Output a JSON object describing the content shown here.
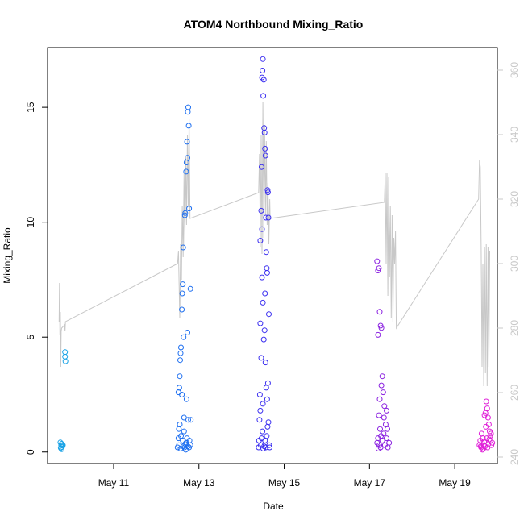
{
  "chart_data": {
    "type": "scatter",
    "title": "ATOM4 Northbound Mixing_Ratio",
    "xlabel": "Date",
    "ylabel": "Mixing_Ratio",
    "x_ticks": [
      {
        "label": "May 11",
        "day": 11
      },
      {
        "label": "May 13",
        "day": 13
      },
      {
        "label": "May 15",
        "day": 15
      },
      {
        "label": "May 17",
        "day": 17
      },
      {
        "label": "May 19",
        "day": 19
      }
    ],
    "x_range_days": [
      9.45,
      20.0
    ],
    "y_ticks": [
      0,
      5,
      10,
      15
    ],
    "ylim": [
      -0.5,
      17.6
    ],
    "y2_ticks": [
      240,
      260,
      280,
      300,
      320,
      340,
      360
    ],
    "y2lim": [
      238,
      367
    ],
    "y2_color": "#c8c8c8",
    "grid": false,
    "series": [
      {
        "kind": "points",
        "color": "#1aa3e6",
        "points": [
          [
            9.75,
            0.42
          ],
          [
            9.77,
            0.3
          ],
          [
            9.78,
            0.36
          ],
          [
            9.76,
            0.18
          ],
          [
            9.79,
            0.22
          ],
          [
            9.8,
            0.28
          ],
          [
            9.78,
            0.12
          ],
          [
            9.81,
            0.3
          ],
          [
            9.86,
            4.35
          ],
          [
            9.86,
            4.15
          ],
          [
            9.87,
            3.95
          ]
        ]
      },
      {
        "kind": "points",
        "color": "#1e6ff0",
        "points": [
          [
            12.5,
            0.2
          ],
          [
            12.52,
            0.6
          ],
          [
            12.53,
            1.0
          ],
          [
            12.54,
            2.8
          ],
          [
            12.55,
            3.3
          ],
          [
            12.56,
            4.0
          ],
          [
            12.57,
            4.3
          ],
          [
            12.58,
            4.55
          ],
          [
            12.6,
            6.2
          ],
          [
            12.61,
            6.9
          ],
          [
            12.62,
            7.3
          ],
          [
            12.63,
            8.9
          ],
          [
            12.64,
            5.0
          ],
          [
            12.65,
            1.5
          ],
          [
            12.67,
            10.3
          ],
          [
            12.68,
            10.4
          ],
          [
            12.7,
            12.2
          ],
          [
            12.71,
            12.6
          ],
          [
            12.72,
            13.5
          ],
          [
            12.73,
            12.8
          ],
          [
            12.74,
            14.8
          ],
          [
            12.75,
            15.0
          ],
          [
            12.76,
            14.2
          ],
          [
            12.77,
            10.6
          ],
          [
            12.8,
            7.1
          ],
          [
            12.73,
            5.2
          ],
          [
            12.71,
            2.3
          ],
          [
            12.53,
            0.3
          ],
          [
            12.57,
            0.15
          ],
          [
            12.62,
            0.5
          ],
          [
            12.66,
            0.2
          ],
          [
            12.7,
            0.4
          ],
          [
            12.74,
            0.25
          ],
          [
            12.78,
            0.5
          ],
          [
            12.8,
            0.3
          ],
          [
            12.55,
            1.2
          ],
          [
            12.65,
            0.9
          ],
          [
            12.75,
            1.4
          ],
          [
            12.81,
            1.4
          ],
          [
            12.58,
            0.7
          ],
          [
            12.68,
            0.35
          ],
          [
            12.72,
            0.6
          ],
          [
            12.6,
            2.5
          ],
          [
            12.52,
            2.6
          ],
          [
            12.69,
            0.1
          ],
          [
            12.63,
            0.25
          ],
          [
            12.77,
            0.2
          ]
        ]
      },
      {
        "kind": "points",
        "color": "#3c30f0",
        "points": [
          [
            14.4,
            0.2
          ],
          [
            14.42,
            1.4
          ],
          [
            14.43,
            2.5
          ],
          [
            14.44,
            5.6
          ],
          [
            14.46,
            10.5
          ],
          [
            14.47,
            12.4
          ],
          [
            14.48,
            16.3
          ],
          [
            14.49,
            16.6
          ],
          [
            14.5,
            17.1
          ],
          [
            14.51,
            15.5
          ],
          [
            14.52,
            16.2
          ],
          [
            14.53,
            14.1
          ],
          [
            14.54,
            13.9
          ],
          [
            14.55,
            13.2
          ],
          [
            14.56,
            12.9
          ],
          [
            14.57,
            10.2
          ],
          [
            14.58,
            8.7
          ],
          [
            14.59,
            8.0
          ],
          [
            14.6,
            7.8
          ],
          [
            14.61,
            11.4
          ],
          [
            14.62,
            11.3
          ],
          [
            14.63,
            10.2
          ],
          [
            14.64,
            6.0
          ],
          [
            14.46,
            4.1
          ],
          [
            14.48,
            7.6
          ],
          [
            14.5,
            6.5
          ],
          [
            14.52,
            4.9
          ],
          [
            14.54,
            5.3
          ],
          [
            14.56,
            3.9
          ],
          [
            14.58,
            2.8
          ],
          [
            14.6,
            2.3
          ],
          [
            14.45,
            0.3
          ],
          [
            14.47,
            0.6
          ],
          [
            14.49,
            0.9
          ],
          [
            14.51,
            0.15
          ],
          [
            14.53,
            0.25
          ],
          [
            14.55,
            0.5
          ],
          [
            14.57,
            0.2
          ],
          [
            14.59,
            0.7
          ],
          [
            14.61,
            1.1
          ],
          [
            14.63,
            1.3
          ],
          [
            14.65,
            0.3
          ],
          [
            14.41,
            0.5
          ],
          [
            14.44,
            1.8
          ],
          [
            14.5,
            2.1
          ],
          [
            14.62,
            3.0
          ],
          [
            14.66,
            0.2
          ],
          [
            14.44,
            9.2
          ],
          [
            14.55,
            6.9
          ],
          [
            14.48,
            9.7
          ]
        ]
      },
      {
        "kind": "points",
        "color": "#8a20e0",
        "points": [
          [
            17.18,
            8.3
          ],
          [
            17.2,
            7.9
          ],
          [
            17.22,
            8.0
          ],
          [
            17.24,
            6.1
          ],
          [
            17.26,
            5.5
          ],
          [
            17.28,
            5.4
          ],
          [
            17.2,
            5.1
          ],
          [
            17.3,
            3.3
          ],
          [
            17.32,
            2.6
          ],
          [
            17.28,
            2.9
          ],
          [
            17.35,
            2.0
          ],
          [
            17.4,
            1.8
          ],
          [
            17.38,
            1.2
          ],
          [
            17.22,
            1.6
          ],
          [
            17.25,
            1.0
          ],
          [
            17.18,
            0.4
          ],
          [
            17.2,
            0.6
          ],
          [
            17.23,
            0.3
          ],
          [
            17.26,
            0.2
          ],
          [
            17.3,
            0.5
          ],
          [
            17.33,
            0.8
          ],
          [
            17.36,
            0.3
          ],
          [
            17.4,
            0.6
          ],
          [
            17.43,
            0.2
          ],
          [
            17.46,
            0.4
          ],
          [
            17.21,
            0.15
          ],
          [
            17.27,
            0.7
          ],
          [
            17.34,
            1.5
          ],
          [
            17.24,
            2.3
          ],
          [
            17.42,
            1.0
          ]
        ]
      },
      {
        "kind": "points",
        "color": "#e020d8",
        "points": [
          [
            19.58,
            0.3
          ],
          [
            19.6,
            0.5
          ],
          [
            19.62,
            0.2
          ],
          [
            19.64,
            0.4
          ],
          [
            19.66,
            0.6
          ],
          [
            19.68,
            0.3
          ],
          [
            19.7,
            1.6
          ],
          [
            19.72,
            1.7
          ],
          [
            19.74,
            2.2
          ],
          [
            19.76,
            1.9
          ],
          [
            19.78,
            1.5
          ],
          [
            19.8,
            1.2
          ],
          [
            19.82,
            0.9
          ],
          [
            19.84,
            0.5
          ],
          [
            19.86,
            0.3
          ],
          [
            19.88,
            0.4
          ],
          [
            19.63,
            0.8
          ],
          [
            19.67,
            0.15
          ],
          [
            19.71,
            0.25
          ],
          [
            19.75,
            0.6
          ],
          [
            19.79,
            0.35
          ],
          [
            19.83,
            0.7
          ],
          [
            19.61,
            0.25
          ],
          [
            19.69,
            0.45
          ],
          [
            19.77,
            0.2
          ],
          [
            19.85,
            0.8
          ],
          [
            19.73,
            1.1
          ],
          [
            19.81,
            0.55
          ],
          [
            19.65,
            0.1
          ]
        ]
      },
      {
        "kind": "line",
        "axis": "right",
        "color": "#c8c8c8",
        "points": [
          [
            9.72,
            282
          ],
          [
            9.73,
            294
          ],
          [
            9.74,
            278
          ],
          [
            9.75,
            285
          ],
          [
            9.76,
            268
          ],
          [
            9.77,
            279
          ],
          [
            9.78,
            280
          ],
          [
            9.85,
            281
          ],
          [
            9.86,
            279
          ],
          [
            9.87,
            282
          ],
          [
            12.5,
            300
          ],
          [
            12.52,
            304
          ],
          [
            12.53,
            297
          ],
          [
            12.55,
            283
          ],
          [
            12.57,
            306
          ],
          [
            12.59,
            295
          ],
          [
            12.61,
            318
          ],
          [
            12.63,
            302
          ],
          [
            12.65,
            328
          ],
          [
            12.67,
            305
          ],
          [
            12.69,
            333
          ],
          [
            12.71,
            312
          ],
          [
            12.73,
            340
          ],
          [
            12.75,
            318
          ],
          [
            12.77,
            345
          ],
          [
            12.79,
            314
          ],
          [
            14.4,
            322
          ],
          [
            14.42,
            334
          ],
          [
            14.44,
            305
          ],
          [
            14.46,
            340
          ],
          [
            14.48,
            303
          ],
          [
            14.5,
            350
          ],
          [
            14.52,
            308
          ],
          [
            14.54,
            343
          ],
          [
            14.56,
            315
          ],
          [
            14.58,
            338
          ],
          [
            14.6,
            312
          ],
          [
            14.62,
            325
          ],
          [
            14.64,
            306
          ],
          [
            14.66,
            320
          ],
          [
            14.67,
            314
          ],
          [
            17.35,
            319
          ],
          [
            17.37,
            328
          ],
          [
            17.39,
            300
          ],
          [
            17.41,
            328
          ],
          [
            17.43,
            290
          ],
          [
            17.45,
            327
          ],
          [
            17.47,
            296
          ],
          [
            17.49,
            318
          ],
          [
            17.51,
            283
          ],
          [
            17.53,
            315
          ],
          [
            17.55,
            282
          ],
          [
            17.57,
            308
          ],
          [
            17.59,
            300
          ],
          [
            17.61,
            310
          ],
          [
            17.63,
            280
          ],
          [
            19.56,
            320
          ],
          [
            19.58,
            332
          ],
          [
            19.6,
            330
          ],
          [
            19.62,
            305
          ],
          [
            19.64,
            268
          ],
          [
            19.66,
            300
          ],
          [
            19.68,
            262
          ],
          [
            19.7,
            305
          ],
          [
            19.72,
            266
          ],
          [
            19.74,
            306
          ],
          [
            19.76,
            262
          ],
          [
            19.78,
            305
          ],
          [
            19.8,
            268
          ],
          [
            19.82,
            304
          ]
        ]
      }
    ]
  }
}
